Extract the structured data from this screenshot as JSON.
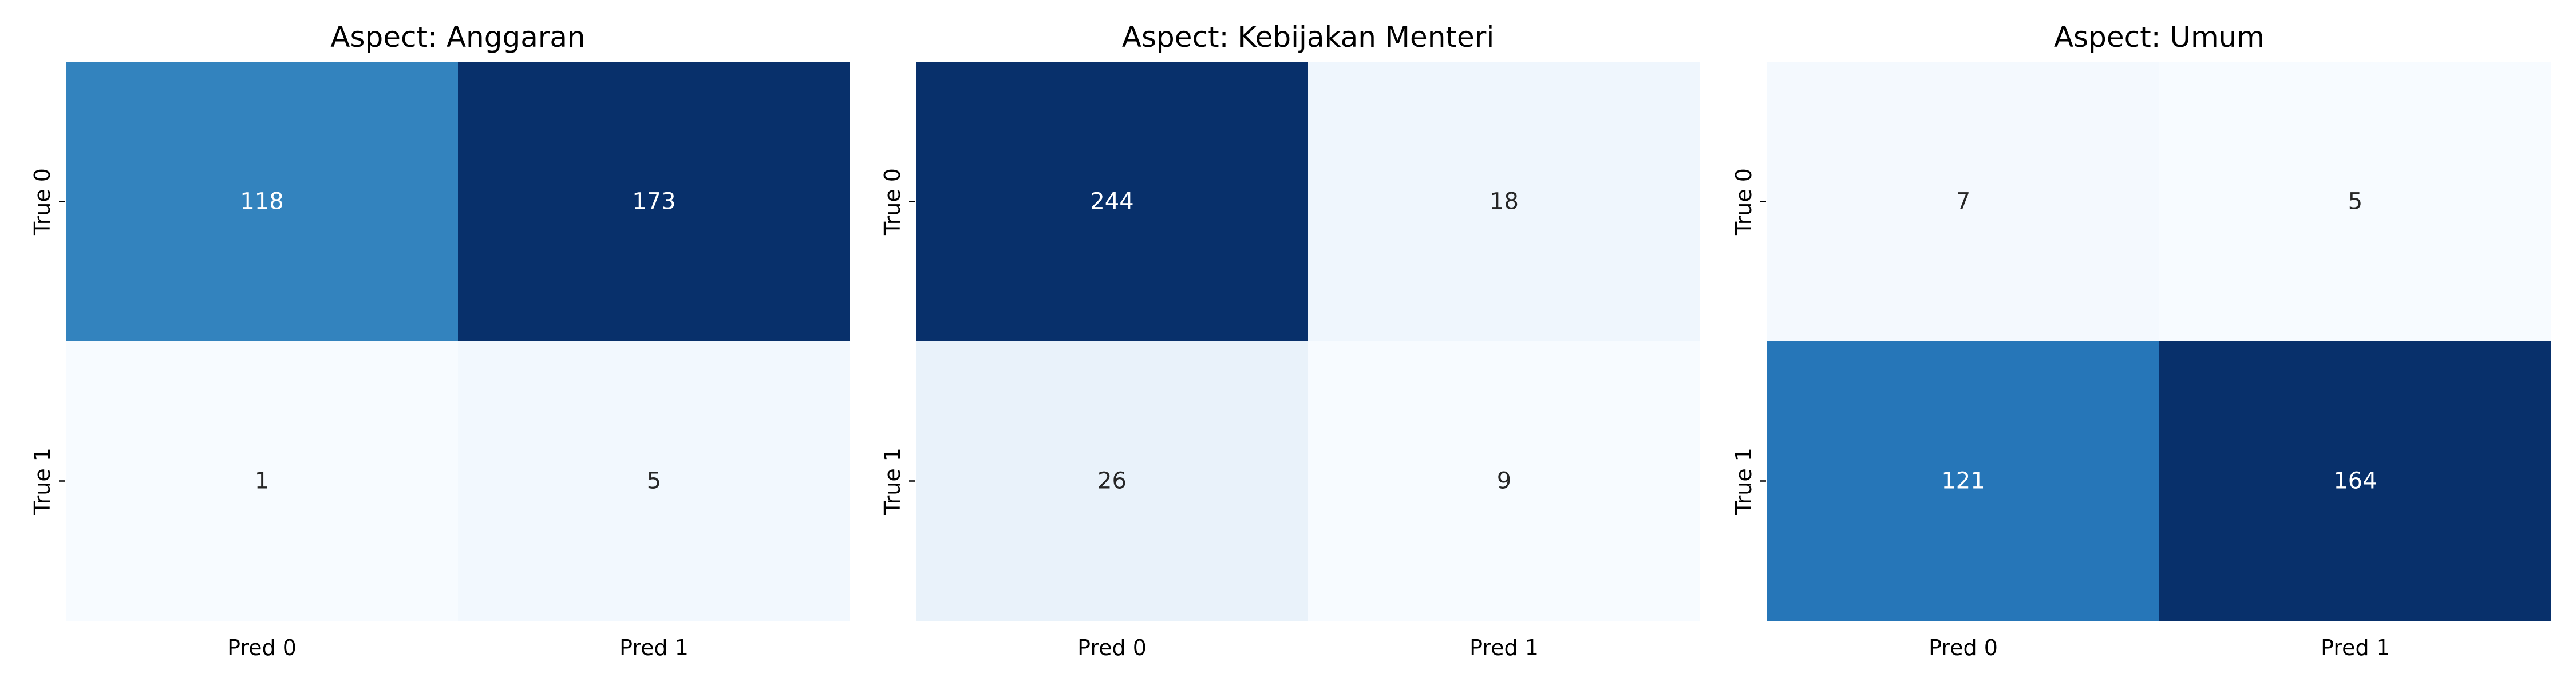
{
  "chart_data": [
    {
      "type": "heatmap",
      "title": "Aspect: Anggaran",
      "row_labels": [
        "True 0",
        "True 1"
      ],
      "col_labels": [
        "Pred 0",
        "Pred 1"
      ],
      "values": [
        [
          118,
          173
        ],
        [
          1,
          5
        ]
      ],
      "colormap": "Blues",
      "colorbar": false
    },
    {
      "type": "heatmap",
      "title": "Aspect: Kebijakan Menteri",
      "row_labels": [
        "True 0",
        "True 1"
      ],
      "col_labels": [
        "Pred 0",
        "Pred 1"
      ],
      "values": [
        [
          244,
          18
        ],
        [
          26,
          9
        ]
      ],
      "colormap": "Blues",
      "colorbar": false
    },
    {
      "type": "heatmap",
      "title": "Aspect: Umum",
      "row_labels": [
        "True 0",
        "True 1"
      ],
      "col_labels": [
        "Pred 0",
        "Pred 1"
      ],
      "values": [
        [
          7,
          5
        ],
        [
          121,
          164
        ]
      ],
      "colormap": "Blues",
      "colorbar": false
    }
  ]
}
